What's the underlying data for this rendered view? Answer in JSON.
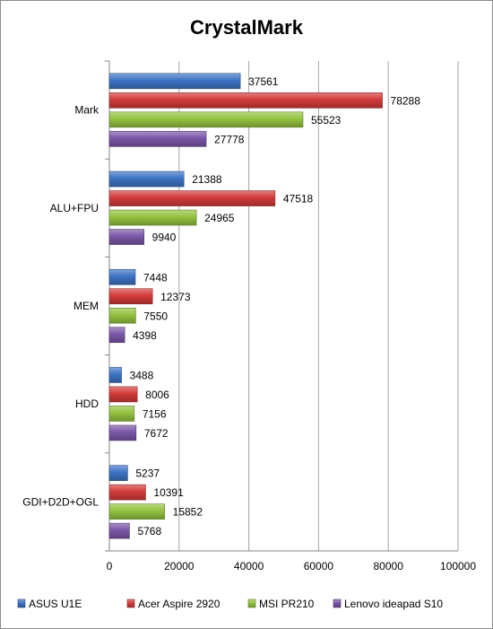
{
  "chart_data": {
    "type": "bar",
    "orientation": "horizontal",
    "title": "CrystalMark",
    "categories": [
      "Mark",
      "ALU+FPU",
      "MEM",
      "HDD",
      "GDI+D2D+OGL"
    ],
    "series": [
      {
        "name": "ASUS U1E",
        "color": "#3d73c4",
        "values": [
          37561,
          21388,
          7448,
          3488,
          5237
        ]
      },
      {
        "name": "Acer Aspire 2920",
        "color": "#d23b3a",
        "values": [
          78288,
          47518,
          12373,
          8006,
          10391
        ]
      },
      {
        "name": "MSI PR210",
        "color": "#93c23f",
        "values": [
          55523,
          24965,
          7550,
          7156,
          15852
        ]
      },
      {
        "name": "Lenovo ideapad S10",
        "color": "#7a56a8",
        "values": [
          27778,
          9940,
          4398,
          7672,
          5768
        ]
      }
    ],
    "xlim": [
      0,
      100000
    ],
    "xticks": [
      0,
      20000,
      40000,
      60000,
      80000,
      100000
    ],
    "grid": true,
    "legend": "bottom"
  }
}
